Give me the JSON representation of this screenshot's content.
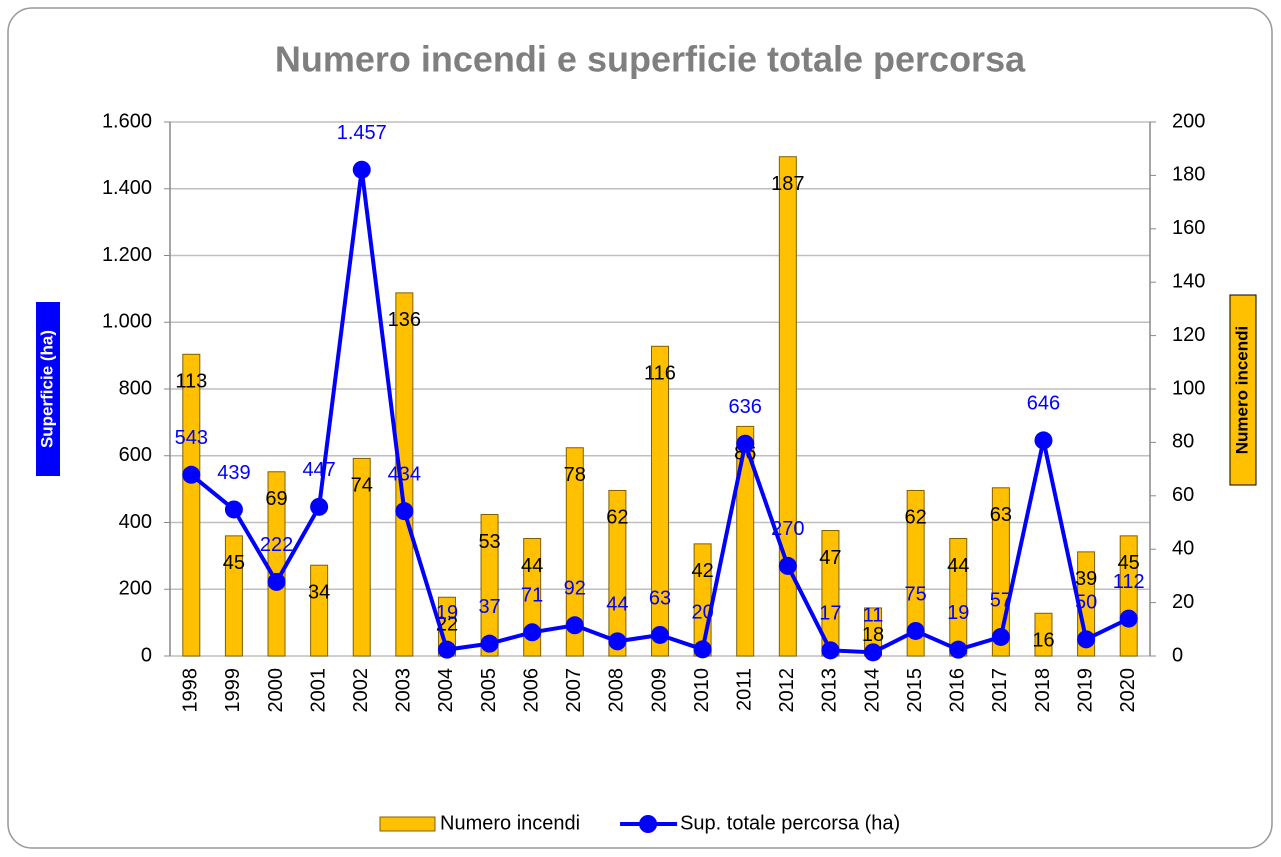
{
  "chart_data": {
    "type": "combo",
    "title": "Numero incendi e superficie totale percorsa",
    "y_label": "Superficie (ha)",
    "y2_label": "Numero incendi",
    "categories": [
      "1998",
      "1999",
      "2000",
      "2001",
      "2002",
      "2003",
      "2004",
      "2005",
      "2006",
      "2007",
      "2008",
      "2009",
      "2010",
      "2011",
      "2012",
      "2013",
      "2014",
      "2015",
      "2016",
      "2017",
      "2018",
      "2019",
      "2020"
    ],
    "series": [
      {
        "name": "Numero incendi",
        "type": "bar",
        "axis": "y2",
        "color": "#ffc000",
        "values": [
          113,
          45,
          69,
          34,
          74,
          136,
          22,
          53,
          44,
          78,
          62,
          116,
          42,
          86,
          187,
          47,
          18,
          62,
          44,
          63,
          16,
          39,
          45
        ]
      },
      {
        "name": "Sup. totale percorsa (ha)",
        "type": "line",
        "axis": "y",
        "color": "#0000ff",
        "values": [
          543,
          439,
          222,
          447,
          1457,
          434,
          19,
          37,
          71,
          92,
          44,
          63,
          20,
          636,
          270,
          17,
          11,
          75,
          19,
          57,
          646,
          50,
          112
        ],
        "value_labels": [
          "543",
          "439",
          "222",
          "447",
          "1.457",
          "434",
          "19",
          "37",
          "71",
          "92",
          "44",
          "63",
          "20",
          "636",
          "270",
          "17",
          "11",
          "75",
          "19",
          "57",
          "646",
          "50",
          "112"
        ]
      }
    ],
    "ylim": [
      0,
      1600
    ],
    "yticks": [
      0,
      200,
      400,
      600,
      800,
      {
        "value": 1000,
        "label": "1.000"
      },
      {
        "value": 1200,
        "label": "1.200"
      },
      {
        "value": 1400,
        "label": "1.400"
      },
      {
        "value": 1600,
        "label": "1.600"
      }
    ],
    "y2lim": [
      0,
      200
    ],
    "y2ticks": [
      0,
      20,
      40,
      60,
      80,
      100,
      120,
      140,
      160,
      180,
      200
    ],
    "grid": true
  }
}
